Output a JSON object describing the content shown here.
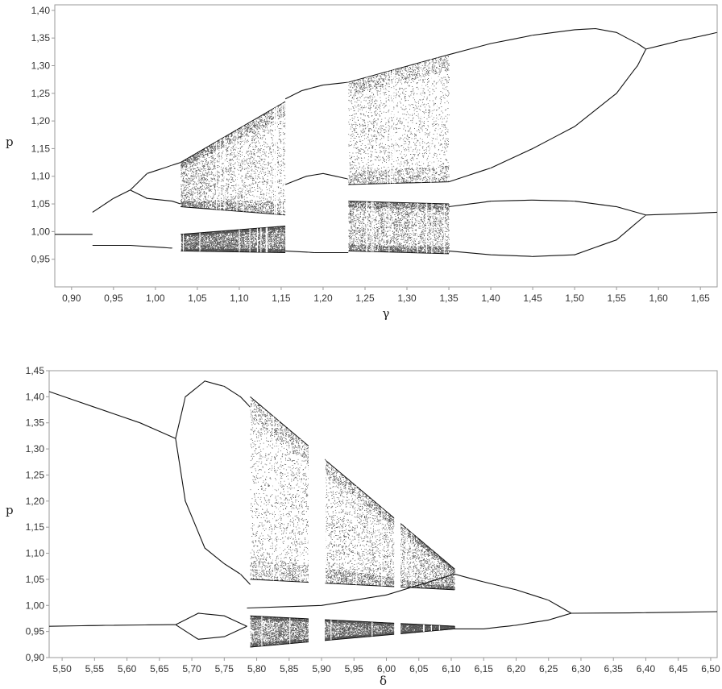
{
  "colors": {
    "curve": "#111111",
    "chaos": "#1a1a1a",
    "frame": "#9a9a9a",
    "text": "#333333"
  },
  "chart_data": [
    {
      "type": "scatter",
      "description_kind": "bifurcation-diagram",
      "xlabel": "γ",
      "ylabel": "p",
      "xlim": [
        0.88,
        1.67
      ],
      "ylim": [
        0.9,
        1.41
      ],
      "xticks": [
        "0,90",
        "0,95",
        "1,00",
        "1,05",
        "1,10",
        "1,15",
        "1,20",
        "1,25",
        "1,30",
        "1,35",
        "1,40",
        "1,45",
        "1,50",
        "1,55",
        "1,60",
        "1,65"
      ],
      "yticks": [
        "0,95",
        "1,00",
        "1,05",
        "1,10",
        "1,15",
        "1,20",
        "1,25",
        "1,30",
        "1,35",
        "1,40"
      ],
      "grid": false,
      "curves": [
        {
          "x": [
            0.88,
            0.925
          ],
          "y": [
            0.995,
            0.995
          ]
        },
        {
          "x": [
            0.925,
            0.95,
            0.97
          ],
          "y": [
            1.035,
            1.06,
            1.075
          ]
        },
        {
          "x": [
            0.925,
            0.97,
            1.02
          ],
          "y": [
            0.975,
            0.975,
            0.97
          ]
        },
        {
          "x": [
            0.97,
            0.99,
            1.02,
            1.03
          ],
          "y": [
            1.075,
            1.105,
            1.12,
            1.125
          ]
        },
        {
          "x": [
            0.97,
            0.99,
            1.02,
            1.03
          ],
          "y": [
            1.075,
            1.06,
            1.055,
            1.05
          ]
        },
        {
          "x": [
            1.35,
            1.4,
            1.45,
            1.5,
            1.525,
            1.55,
            1.575,
            1.585
          ],
          "y": [
            1.32,
            1.34,
            1.355,
            1.365,
            1.367,
            1.36,
            1.34,
            1.33
          ]
        },
        {
          "x": [
            1.35,
            1.4,
            1.45,
            1.5,
            1.55,
            1.575,
            1.585
          ],
          "y": [
            1.09,
            1.115,
            1.15,
            1.19,
            1.25,
            1.3,
            1.33
          ]
        },
        {
          "x": [
            1.585,
            1.625,
            1.67
          ],
          "y": [
            1.33,
            1.345,
            1.36
          ]
        },
        {
          "x": [
            1.35,
            1.4,
            1.45,
            1.5,
            1.55,
            1.585
          ],
          "y": [
            1.045,
            1.055,
            1.057,
            1.055,
            1.045,
            1.03
          ]
        },
        {
          "x": [
            1.35,
            1.4,
            1.45,
            1.5,
            1.55,
            1.585
          ],
          "y": [
            0.965,
            0.958,
            0.955,
            0.958,
            0.985,
            1.03
          ]
        },
        {
          "x": [
            1.585,
            1.625,
            1.67
          ],
          "y": [
            1.03,
            1.032,
            1.035
          ]
        },
        {
          "x": [
            1.155,
            1.175,
            1.2,
            1.23
          ],
          "y": [
            1.24,
            1.255,
            1.265,
            1.27
          ]
        },
        {
          "x": [
            1.155,
            1.18,
            1.2,
            1.23
          ],
          "y": [
            1.085,
            1.1,
            1.105,
            1.095
          ]
        },
        {
          "x": [
            1.155,
            1.19,
            1.23
          ],
          "y": [
            0.965,
            0.962,
            0.962
          ]
        }
      ],
      "chaotic_bands": [
        {
          "x": [
            1.03,
            1.155
          ],
          "upper": [
            1.125,
            1.235
          ],
          "lower": [
            1.045,
            1.03
          ],
          "density": 0.55
        },
        {
          "x": [
            1.03,
            1.155
          ],
          "upper": [
            0.995,
            1.01
          ],
          "lower": [
            0.965,
            0.962
          ],
          "density": 0.85
        },
        {
          "x": [
            1.23,
            1.35
          ],
          "upper": [
            1.27,
            1.32
          ],
          "lower": [
            1.085,
            1.09
          ],
          "density": 0.45
        },
        {
          "x": [
            1.23,
            1.35
          ],
          "upper": [
            1.055,
            1.05
          ],
          "lower": [
            0.965,
            0.96
          ],
          "density": 0.6
        }
      ],
      "periodic_windows": [
        {
          "x": [
            1.155,
            1.23
          ]
        }
      ]
    },
    {
      "type": "scatter",
      "description_kind": "bifurcation-diagram",
      "xlabel": "δ",
      "ylabel": "p",
      "xlim": [
        5.48,
        6.51
      ],
      "ylim": [
        0.9,
        1.45
      ],
      "xticks": [
        "5,50",
        "5,55",
        "5,60",
        "5,65",
        "5,70",
        "5,75",
        "5,80",
        "5,85",
        "5,90",
        "5,95",
        "6,00",
        "6,05",
        "6,10",
        "6,15",
        "6,20",
        "6,25",
        "6,30",
        "6,35",
        "6,40",
        "6,45",
        "6,50"
      ],
      "yticks": [
        "0,90",
        "0,95",
        "1,00",
        "1,05",
        "1,10",
        "1,15",
        "1,20",
        "1,25",
        "1,30",
        "1,35",
        "1,40",
        "1,45"
      ],
      "grid": false,
      "curves": [
        {
          "x": [
            5.48,
            5.55,
            5.62,
            5.675
          ],
          "y": [
            1.41,
            1.38,
            1.35,
            1.32
          ]
        },
        {
          "x": [
            5.48,
            5.58,
            5.675
          ],
          "y": [
            0.96,
            0.962,
            0.963
          ]
        },
        {
          "x": [
            5.675,
            5.69,
            5.72,
            5.75,
            5.775,
            5.79
          ],
          "y": [
            1.32,
            1.4,
            1.43,
            1.42,
            1.4,
            1.38
          ]
        },
        {
          "x": [
            5.675,
            5.69,
            5.72,
            5.75,
            5.775,
            5.79
          ],
          "y": [
            1.32,
            1.2,
            1.11,
            1.08,
            1.06,
            1.04
          ]
        },
        {
          "x": [
            5.675,
            5.71,
            5.75,
            5.785
          ],
          "y": [
            0.963,
            0.985,
            0.98,
            0.96
          ]
        },
        {
          "x": [
            5.675,
            5.71,
            5.75,
            5.785
          ],
          "y": [
            0.963,
            0.935,
            0.94,
            0.96
          ]
        },
        {
          "x": [
            6.105,
            6.15,
            6.2,
            6.25,
            6.285
          ],
          "y": [
            1.06,
            1.045,
            1.03,
            1.01,
            0.985
          ]
        },
        {
          "x": [
            6.105,
            6.15,
            6.2,
            6.25,
            6.285
          ],
          "y": [
            0.955,
            0.955,
            0.962,
            0.972,
            0.985
          ]
        },
        {
          "x": [
            6.285,
            6.4,
            6.51
          ],
          "y": [
            0.985,
            0.986,
            0.988
          ]
        },
        {
          "x": [
            5.785,
            5.9,
            6.0,
            6.105
          ],
          "y": [
            0.995,
            1.0,
            1.02,
            1.06
          ]
        }
      ],
      "chaotic_bands": [
        {
          "x": [
            5.79,
            6.105
          ],
          "upper": [
            1.4,
            1.07
          ],
          "lower": [
            1.05,
            1.03
          ],
          "density": 0.55
        },
        {
          "x": [
            5.79,
            6.105
          ],
          "upper": [
            0.98,
            0.96
          ],
          "lower": [
            0.92,
            0.955
          ],
          "density": 0.9
        }
      ],
      "periodic_windows": [
        {
          "x": [
            5.88,
            5.905
          ]
        },
        {
          "x": [
            6.012,
            6.022
          ]
        }
      ]
    }
  ]
}
